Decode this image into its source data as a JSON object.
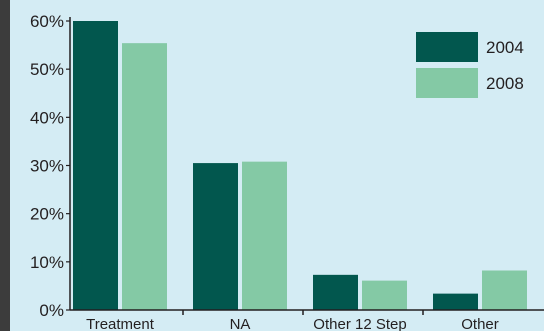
{
  "chart_data": {
    "type": "bar",
    "categories": [
      "Treatment",
      "NA",
      "Other 12 Step",
      "Other"
    ],
    "series": [
      {
        "name": "2004",
        "values": [
          60,
          30.5,
          7.3,
          3.4
        ],
        "color": "#02574e"
      },
      {
        "name": "2008",
        "values": [
          55.4,
          30.8,
          6.1,
          8.2
        ],
        "color": "#84c9a5"
      }
    ],
    "ylim": [
      0,
      60
    ],
    "yticks": [
      0,
      10,
      20,
      30,
      40,
      50,
      60
    ],
    "ytick_labels": [
      "0%",
      "10%",
      "20%",
      "30%",
      "40%",
      "50%",
      "60%"
    ],
    "xlabel": "",
    "ylabel": "",
    "title": "",
    "grid": false,
    "legend_position": "top-right"
  },
  "colors": {
    "background": "#d4ecf4",
    "frame": "#3c3c3c",
    "axis": "#231f20"
  }
}
